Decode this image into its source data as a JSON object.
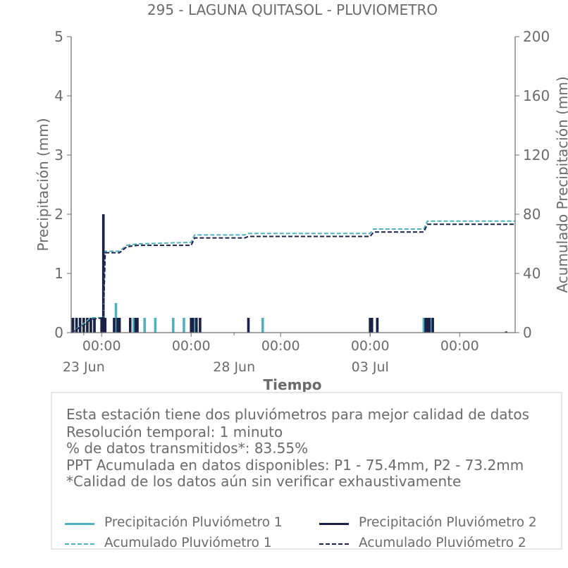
{
  "chart_data": {
    "type": "bar+line",
    "title": "295 - LAGUNA QUITASOL - PLUVIOMETRO",
    "xlabel": "Tiempo",
    "ylabel": "Precipitación (mm)",
    "ylabel_right": "Acumulado Precipitación (mm)",
    "ylim": [
      0,
      5
    ],
    "ylim_right": [
      0,
      200
    ],
    "yticks": [
      "0",
      "1",
      "2",
      "3",
      "4",
      "5"
    ],
    "yticks_right": [
      "0",
      "40",
      "80",
      "120",
      "160",
      "200"
    ],
    "xlim": [
      -0.35,
      12.05
    ],
    "xticks": [
      {
        "pos": 0.5,
        "label": "00:00"
      },
      {
        "pos": 3.0,
        "label": "00:00"
      },
      {
        "pos": 5.5,
        "label": "00:00"
      },
      {
        "pos": 8.0,
        "label": "00:00"
      },
      {
        "pos": 10.5,
        "label": "00:00"
      }
    ],
    "xdate_labels": [
      {
        "pos": 0.0,
        "label": "23 Jun"
      },
      {
        "pos": 4.2,
        "label": "28 Jun"
      },
      {
        "pos": 8.0,
        "label": "03 Jul"
      }
    ],
    "series": [
      {
        "name": "Precipitación Pluviómetro 1",
        "kind": "bar",
        "color": "#4fb3bf",
        "x": [
          -0.3,
          -0.2,
          -0.1,
          0.0,
          0.1,
          0.2,
          0.3,
          0.5,
          0.85,
          0.9,
          1.0,
          1.4,
          1.7,
          2.0,
          2.5,
          2.8,
          3.1,
          5.0,
          8.0,
          8.2,
          9.5,
          9.6,
          9.7
        ],
        "values": [
          0.25,
          0.25,
          0.25,
          0.25,
          0.25,
          0.25,
          0.25,
          0.25,
          0.25,
          0.5,
          0.25,
          0.25,
          0.25,
          0.25,
          0.25,
          0.25,
          0.25,
          0.25,
          0.25,
          0.25,
          0.25,
          0.25,
          0.25
        ]
      },
      {
        "name": "Precipitación Pluviómetro 2",
        "kind": "bar",
        "color": "#1c2147",
        "x": [
          -0.3,
          -0.2,
          -0.1,
          0.0,
          0.1,
          0.2,
          0.3,
          0.5,
          0.55,
          0.6,
          0.85,
          0.95,
          1.0,
          1.3,
          1.45,
          1.5,
          3.0,
          3.05,
          3.15,
          3.25,
          4.6,
          8.0,
          8.05,
          8.2,
          9.55,
          9.6,
          9.65,
          9.75,
          11.8
        ],
        "values": [
          0.25,
          0.25,
          0.25,
          0.25,
          0.25,
          0.25,
          0.25,
          0.25,
          2.0,
          0.25,
          0.25,
          0.25,
          0.25,
          0.25,
          0.25,
          0.25,
          0.25,
          0.25,
          0.25,
          0.25,
          0.25,
          0.25,
          0.25,
          0.25,
          0.25,
          0.25,
          0.25,
          0.25,
          0.02
        ]
      },
      {
        "name": "Acumulado Pluviómetro 1",
        "kind": "line",
        "axis": "right",
        "dash": true,
        "color": "#4fb3bf",
        "x": [
          -0.35,
          0.0,
          0.2,
          0.55,
          0.6,
          1.0,
          1.2,
          1.5,
          3.0,
          3.1,
          4.5,
          4.6,
          8.0,
          8.1,
          9.5,
          9.6,
          12.05
        ],
        "values": [
          0,
          6,
          10,
          10,
          55,
          55,
          59,
          60,
          61,
          66,
          66,
          67,
          67,
          70,
          70,
          75.4,
          75.4
        ]
      },
      {
        "name": "Acumulado Pluviómetro 2",
        "kind": "line",
        "axis": "right",
        "dash": true,
        "color": "#1c2147",
        "x": [
          -0.35,
          0.0,
          0.2,
          0.55,
          0.6,
          1.0,
          1.2,
          1.5,
          3.0,
          3.1,
          4.5,
          4.6,
          8.0,
          8.1,
          9.5,
          9.6,
          12.05
        ],
        "values": [
          0,
          5,
          9,
          10,
          54,
          54,
          58,
          59,
          59,
          64,
          64,
          65,
          65,
          68,
          68,
          73.2,
          73.2
        ]
      }
    ]
  },
  "info": {
    "line1": "Esta estación tiene dos pluviómetros para mejor calidad de datos",
    "line2": "Resolución temporal: 1 minuto",
    "line3": "% de datos transmitidos*: 83.55%",
    "line4": "PPT Acumulada en datos disponibles: P1 - 75.4mm, P2 - 73.2mm",
    "line5": "*Calidad de los datos aún sin verificar exhaustivamente"
  },
  "legend": {
    "p1": "Precipitación Pluviómetro 1",
    "p2": "Precipitación Pluviómetro 2",
    "a1": "Acumulado Pluviómetro 1",
    "a2": "Acumulado Pluviómetro 2"
  },
  "colors": {
    "p1": "#4fb3bf",
    "p2": "#1c2147",
    "text": "#6b6b6b",
    "axis": "#6b6b6b"
  }
}
